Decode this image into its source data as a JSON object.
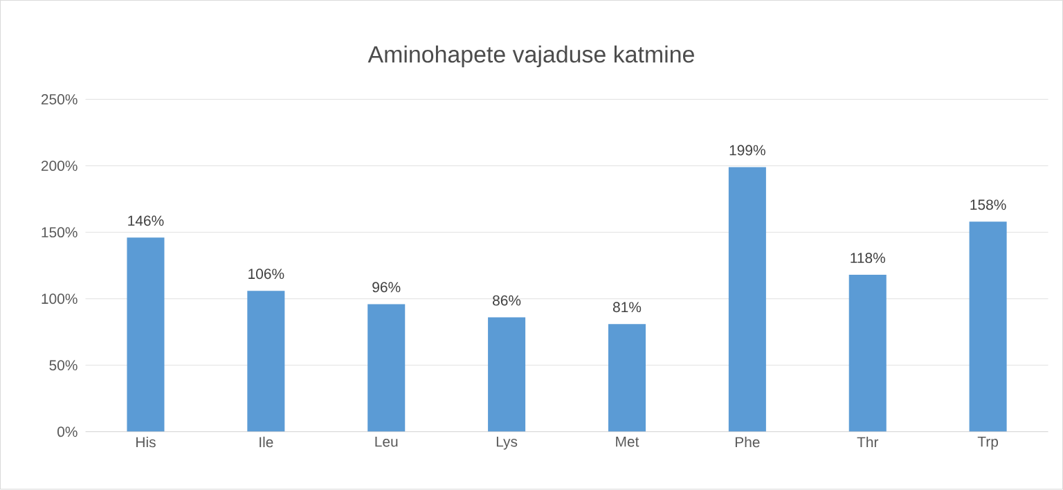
{
  "chart_data": {
    "type": "bar",
    "title": "Aminohapete vajaduse katmine",
    "categories": [
      "His",
      "Ile",
      "Leu",
      "Lys",
      "Met",
      "Phe",
      "Thr",
      "Trp"
    ],
    "values": [
      146,
      106,
      96,
      86,
      81,
      199,
      118,
      158
    ],
    "value_labels": [
      "146%",
      "106%",
      "96%",
      "86%",
      "81%",
      "199%",
      "118%",
      "158%"
    ],
    "color": "#5b9bd5",
    "ylim": [
      0,
      250
    ],
    "yticks": [
      {
        "value": 0,
        "label": "0%"
      },
      {
        "value": 50,
        "label": "50%"
      },
      {
        "value": 100,
        "label": "100%"
      },
      {
        "value": 150,
        "label": "150%"
      },
      {
        "value": 200,
        "label": "200%"
      },
      {
        "value": 250,
        "label": "250%"
      }
    ],
    "grid": "y"
  }
}
